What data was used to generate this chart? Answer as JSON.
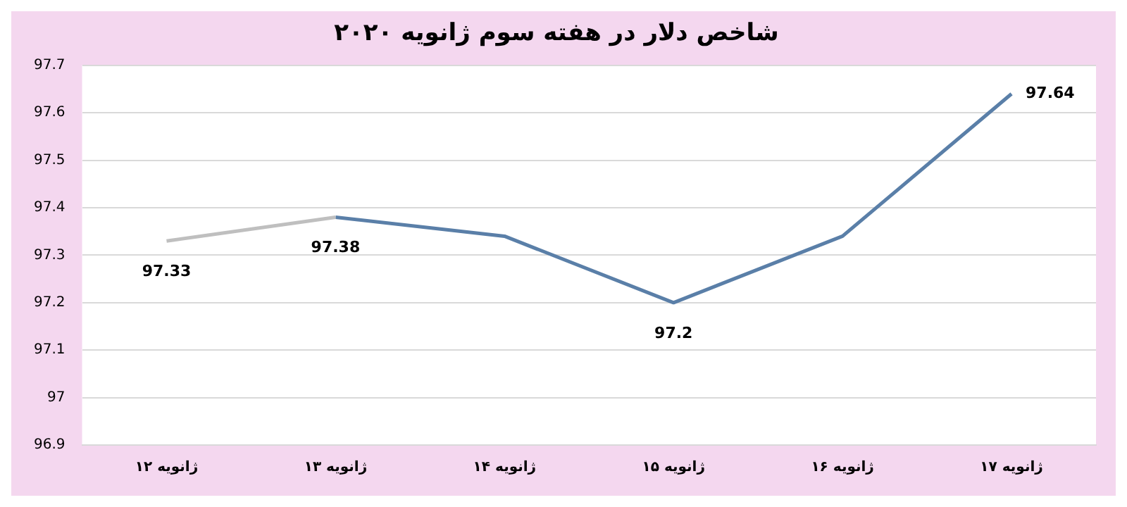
{
  "chart_data": {
    "type": "line",
    "title": "شاخص دلار در هفته سوم ژانویه ۲۰۲۰",
    "categories": [
      "۱۲ ژانویه",
      "۱۳ ژانویه",
      "۱۴ ژانویه",
      "۱۵ ژانویه",
      "۱۶ ژانویه",
      "۱۷ ژانویه"
    ],
    "series": [
      {
        "color": "#bfbfbf",
        "values": [
          97.33,
          97.38,
          null,
          null,
          null,
          null
        ],
        "value_labels": [
          "97.33",
          "97.38",
          null,
          null,
          null,
          null
        ]
      },
      {
        "color": "#5a7fa8",
        "values": [
          null,
          97.38,
          97.34,
          97.2,
          97.34,
          97.64
        ],
        "value_labels": [
          null,
          null,
          null,
          "97.2",
          null,
          "97.64"
        ]
      }
    ],
    "ylim": [
      96.9,
      97.7
    ],
    "yticks": [
      96.9,
      97,
      97.1,
      97.2,
      97.3,
      97.4,
      97.5,
      97.6,
      97.7
    ],
    "grid": "y",
    "legend": false,
    "marker": "none",
    "line_style": "solid"
  }
}
